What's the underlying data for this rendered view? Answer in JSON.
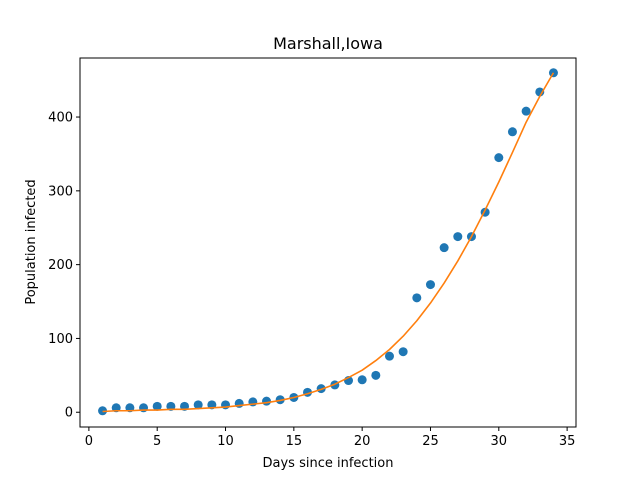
{
  "chart_data": {
    "type": "scatter",
    "title": "Marshall,Iowa",
    "xlabel": "Days since infection",
    "ylabel": "Population infected",
    "xlim": [
      -0.65,
      35.65
    ],
    "ylim": [
      -20,
      480
    ],
    "xticks": [
      0,
      5,
      10,
      15,
      20,
      25,
      30,
      35
    ],
    "yticks": [
      0,
      100,
      200,
      300,
      400
    ],
    "grid": false,
    "series": [
      {
        "kind": "scatter",
        "color": "#1f77b4",
        "x": [
          1,
          2,
          3,
          4,
          5,
          6,
          7,
          8,
          9,
          10,
          11,
          12,
          13,
          14,
          15,
          16,
          17,
          18,
          19,
          20,
          21,
          22,
          23,
          24,
          25,
          26,
          27,
          28,
          29,
          30,
          31,
          32,
          33,
          34
        ],
        "y": [
          2,
          6,
          6,
          6,
          8,
          8,
          8,
          10,
          10,
          10,
          12,
          14,
          15,
          17,
          20,
          27,
          32,
          37,
          43,
          44,
          50,
          76,
          82,
          155,
          173,
          223,
          238,
          238,
          271,
          345,
          380,
          408,
          434,
          460
        ]
      },
      {
        "kind": "line",
        "color": "#ff7f0e",
        "x": [
          1,
          2,
          3,
          4,
          5,
          6,
          7,
          8,
          9,
          10,
          11,
          12,
          13,
          14,
          15,
          16,
          17,
          18,
          19,
          20,
          21,
          22,
          23,
          24,
          25,
          26,
          27,
          28,
          29,
          30,
          31,
          32,
          33,
          34
        ],
        "y": [
          1,
          2,
          2,
          3,
          3,
          4,
          4,
          5,
          6,
          7,
          9,
          11,
          13,
          16,
          20,
          25,
          31,
          38,
          47,
          57,
          70,
          85,
          103,
          124,
          148,
          175,
          205,
          238,
          274,
          312,
          352,
          393,
          428,
          460
        ]
      }
    ]
  }
}
